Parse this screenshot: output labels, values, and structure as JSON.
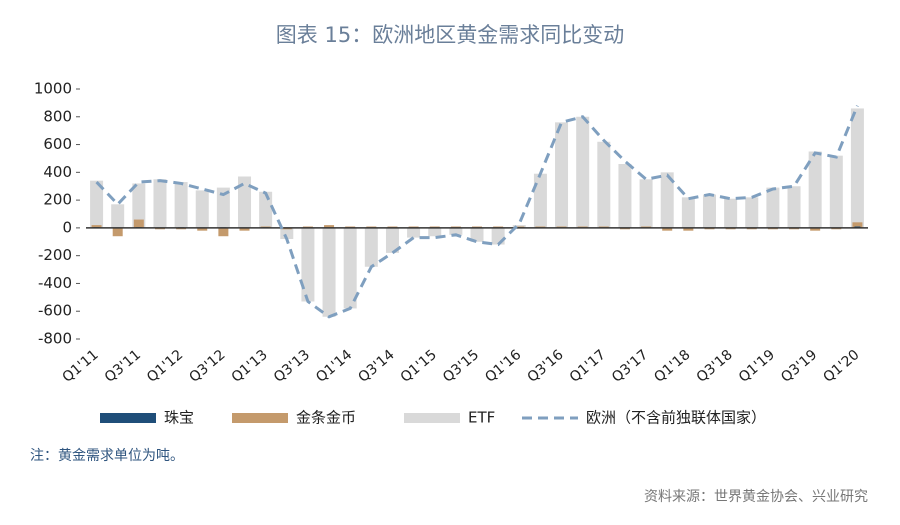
{
  "chart_data": {
    "type": "bar",
    "title": "图表 15：欧洲地区黄金需求同比变动",
    "categories": [
      "Q1'11",
      null,
      "Q3'11",
      null,
      "Q1'12",
      null,
      "Q3'12",
      null,
      "Q1'13",
      null,
      "Q3'13",
      null,
      "Q1'14",
      null,
      "Q3'14",
      null,
      "Q1'15",
      null,
      "Q3'15",
      null,
      "Q1'16",
      null,
      "Q3'16",
      null,
      "Q1'17",
      null,
      "Q3'17",
      null,
      "Q1'18",
      null,
      "Q3'18",
      null,
      "Q1'19",
      null,
      "Q3'19",
      null,
      "Q1'20"
    ],
    "series": [
      {
        "name": "珠宝",
        "color": "#1f4e79",
        "kind": "bar",
        "values": [
          5,
          3,
          5,
          3,
          4,
          3,
          4,
          3,
          4,
          2,
          2,
          2,
          3,
          2,
          2,
          2,
          2,
          2,
          2,
          2,
          2,
          2,
          2,
          2,
          2,
          2,
          2,
          2,
          2,
          2,
          2,
          2,
          2,
          2,
          2,
          2,
          10
        ]
      },
      {
        "name": "金条金币",
        "color": "#c49a6c",
        "kind": "bar",
        "values": [
          20,
          -60,
          60,
          -10,
          -10,
          -20,
          -60,
          -20,
          10,
          -10,
          10,
          20,
          10,
          10,
          10,
          10,
          10,
          10,
          10,
          10,
          10,
          10,
          10,
          10,
          10,
          -10,
          10,
          -20,
          -20,
          -10,
          -10,
          -10,
          -10,
          -10,
          -20,
          -10,
          40
        ]
      },
      {
        "name": "ETF",
        "color": "#d9d9d9",
        "kind": "bar",
        "values": [
          340,
          170,
          320,
          350,
          330,
          270,
          290,
          370,
          260,
          -80,
          -530,
          -640,
          -580,
          -280,
          -180,
          -70,
          -60,
          -50,
          -100,
          -120,
          20,
          390,
          760,
          800,
          620,
          460,
          350,
          400,
          220,
          240,
          210,
          220,
          290,
          300,
          550,
          520,
          860
        ]
      },
      {
        "name": "欧洲（不含前独联体国家）",
        "color": "#7f9fbf",
        "kind": "line",
        "values": [
          330,
          170,
          330,
          340,
          320,
          280,
          240,
          320,
          250,
          -80,
          -530,
          -640,
          -580,
          -280,
          -180,
          -70,
          -70,
          -50,
          -100,
          -120,
          30,
          390,
          760,
          800,
          630,
          480,
          350,
          380,
          210,
          240,
          210,
          220,
          280,
          300,
          540,
          510,
          880
        ]
      }
    ],
    "ylim": [
      -800,
      1000
    ],
    "yticks": [
      -800,
      -600,
      -400,
      -200,
      0,
      200,
      400,
      600,
      800,
      1000
    ],
    "note": "注：黄金需求单位为吨。",
    "source": "资料来源：世界黄金协会、兴业研究"
  }
}
